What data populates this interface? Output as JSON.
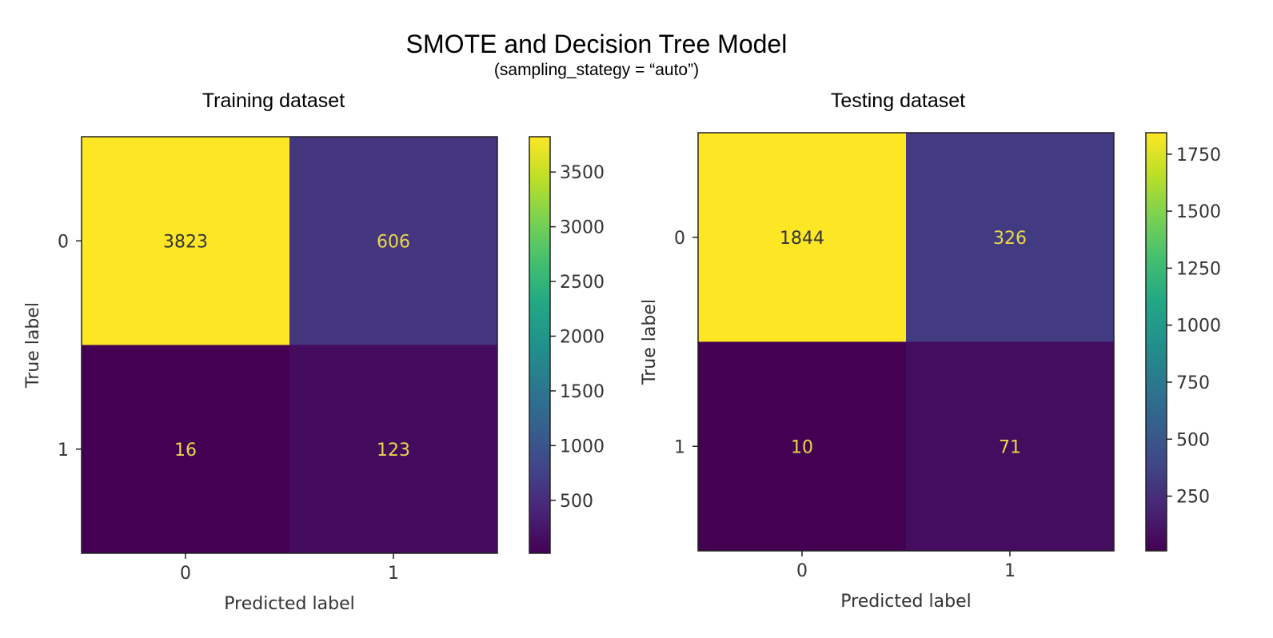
{
  "title": "SMOTE and Decision Tree Model",
  "subtitle": "(sampling_stategy = “auto”)",
  "chart_data": [
    {
      "type": "heatmap",
      "title": "Training dataset",
      "xlabel": "Predicted label",
      "ylabel": "True label",
      "x_tick_labels": [
        "0",
        "1"
      ],
      "y_tick_labels": [
        "0",
        "1"
      ],
      "values": [
        [
          3823,
          606
        ],
        [
          16,
          123
        ]
      ],
      "colormap": "viridis",
      "colorbar": {
        "min": 16,
        "max": 3823,
        "ticks": [
          500,
          1000,
          1500,
          2000,
          2500,
          3000,
          3500
        ],
        "tick_labels": [
          "500",
          "1000",
          "1500",
          "2000",
          "2500",
          "3000",
          "3500"
        ]
      },
      "grid": false
    },
    {
      "type": "heatmap",
      "title": "Testing dataset",
      "xlabel": "Predicted label",
      "ylabel": "True label",
      "x_tick_labels": [
        "0",
        "1"
      ],
      "y_tick_labels": [
        "0",
        "1"
      ],
      "values": [
        [
          1844,
          326
        ],
        [
          10,
          71
        ]
      ],
      "colormap": "viridis",
      "colorbar": {
        "min": 10,
        "max": 1844,
        "ticks": [
          250,
          500,
          750,
          1000,
          1250,
          1500,
          1750
        ],
        "tick_labels": [
          "250",
          "500",
          "750",
          "1000",
          "1250",
          "1500",
          "1750"
        ]
      },
      "grid": false
    }
  ]
}
